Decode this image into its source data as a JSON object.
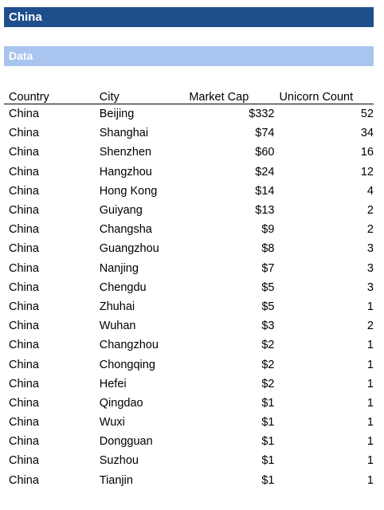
{
  "title": "China",
  "section": "Data",
  "table": {
    "headers": [
      "Country",
      "City",
      "Market Cap",
      "Unicorn Count"
    ],
    "rows": [
      [
        "China",
        "Beijing",
        "$332",
        "52"
      ],
      [
        "China",
        "Shanghai",
        "$74",
        "34"
      ],
      [
        "China",
        "Shenzhen",
        "$60",
        "16"
      ],
      [
        "China",
        "Hangzhou",
        "$24",
        "12"
      ],
      [
        "China",
        "Hong Kong",
        "$14",
        "4"
      ],
      [
        "China",
        "Guiyang",
        "$13",
        "2"
      ],
      [
        "China",
        "Changsha",
        "$9",
        "2"
      ],
      [
        "China",
        "Guangzhou",
        "$8",
        "3"
      ],
      [
        "China",
        "Nanjing",
        "$7",
        "3"
      ],
      [
        "China",
        "Chengdu",
        "$5",
        "3"
      ],
      [
        "China",
        "Zhuhai",
        "$5",
        "1"
      ],
      [
        "China",
        "Wuhan",
        "$3",
        "2"
      ],
      [
        "China",
        "Changzhou",
        "$2",
        "1"
      ],
      [
        "China",
        "Chongqing",
        "$2",
        "1"
      ],
      [
        "China",
        "Hefei",
        "$2",
        "1"
      ],
      [
        "China",
        "Qingdao",
        "$1",
        "1"
      ],
      [
        "China",
        "Wuxi",
        "$1",
        "1"
      ],
      [
        "China",
        "Dongguan",
        "$1",
        "1"
      ],
      [
        "China",
        "Suzhou",
        "$1",
        "1"
      ],
      [
        "China",
        "Tianjin",
        "$1",
        "1"
      ]
    ]
  },
  "colors": {
    "title_bar": "#1f4e8c",
    "section_bar": "#a9c4ef"
  }
}
